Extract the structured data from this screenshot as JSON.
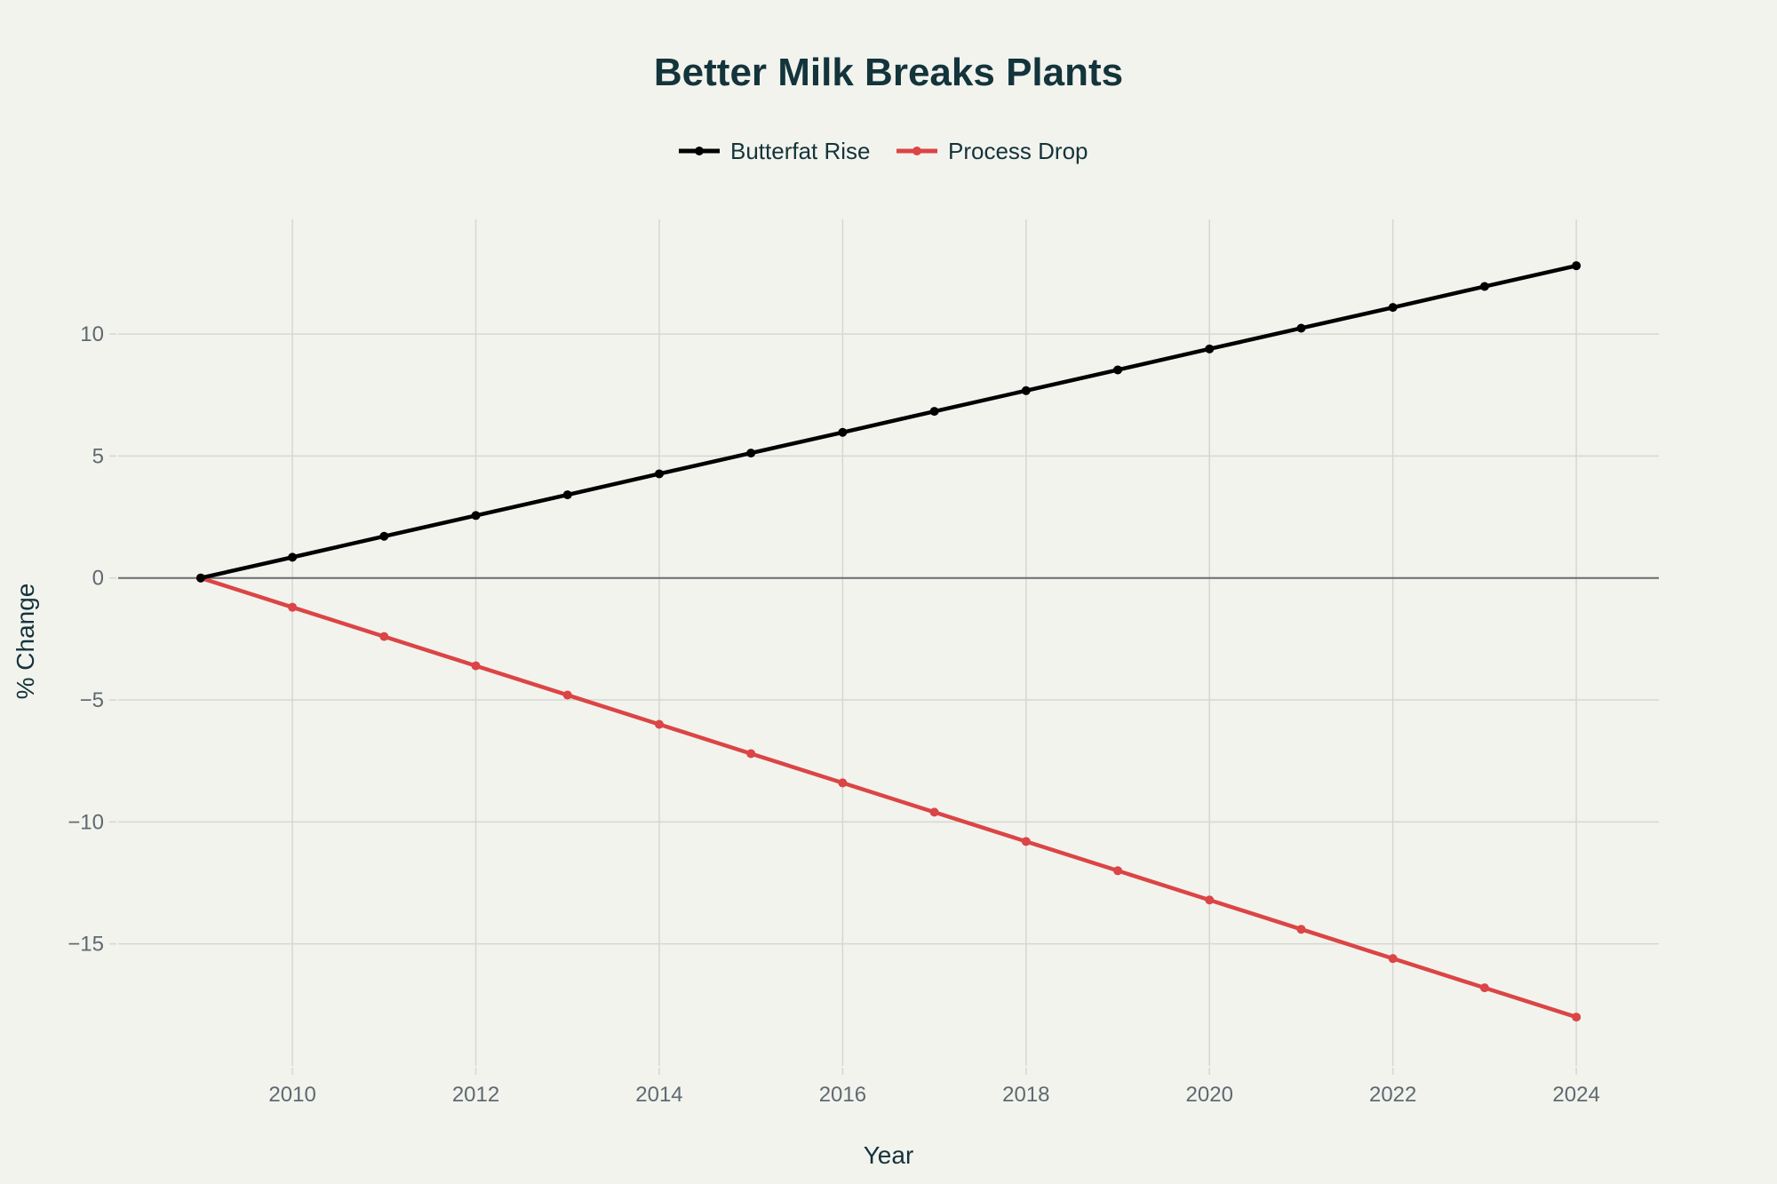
{
  "chart_data": {
    "type": "line",
    "title": "Better Milk Breaks Plants",
    "xlabel": "Year",
    "ylabel": "% Change",
    "x": [
      2009,
      2010,
      2011,
      2012,
      2013,
      2014,
      2015,
      2016,
      2017,
      2018,
      2019,
      2020,
      2021,
      2022,
      2023,
      2024
    ],
    "series": [
      {
        "name": "Butterfat Rise",
        "color": "#000000",
        "values": [
          0,
          0.85,
          1.71,
          2.56,
          3.41,
          4.27,
          5.12,
          5.97,
          6.83,
          7.68,
          8.53,
          9.39,
          10.24,
          11.09,
          11.95,
          12.8
        ]
      },
      {
        "name": "Process Drop",
        "color": "#DB4545",
        "values": [
          0,
          -1.2,
          -2.4,
          -3.6,
          -4.8,
          -6.0,
          -7.2,
          -8.4,
          -9.6,
          -10.8,
          -12.0,
          -13.2,
          -14.4,
          -15.6,
          -16.8,
          -18.0
        ]
      }
    ],
    "xticks": [
      2010,
      2012,
      2014,
      2016,
      2018,
      2020,
      2022,
      2024
    ],
    "yticks": [
      -15,
      -10,
      -5,
      0,
      5,
      10
    ],
    "ytick_labels": [
      "−15",
      "−10",
      "−5",
      "0",
      "5",
      "10"
    ],
    "xlim": [
      2008.1,
      2024.9
    ],
    "ylim": [
      -20.0,
      14.7
    ],
    "grid": true,
    "legend_position": "top-center",
    "colors": {
      "background": "#F3F3EE",
      "title": "#13343B",
      "grid": "#D6D6D2",
      "zero_line": "#6B6B6B",
      "tick_label": "#5E6A71"
    }
  }
}
